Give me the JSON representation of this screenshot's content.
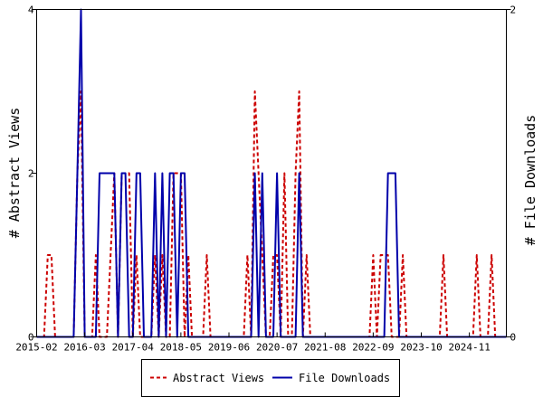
{
  "chart_data": {
    "type": "line",
    "title": "",
    "ylabel_left": "# Abstract Views",
    "ylabel_right": "# File Downloads",
    "ylim_left": [
      0,
      4
    ],
    "ylim_right": [
      0,
      2
    ],
    "yticks_left": [
      "0",
      "2",
      "4"
    ],
    "yticks_right": [
      "0",
      "2"
    ],
    "x_range": [
      "2015-02",
      "2025-09"
    ],
    "x_ticks": [
      "2015-02",
      "2016-03",
      "2017-04",
      "2018-05",
      "2019-06",
      "2020-07",
      "2021-08",
      "2022-09",
      "2023-10",
      "2024-11"
    ],
    "grid": false,
    "legend_position": "bottom-center",
    "series": [
      {
        "name": "Abstract Views",
        "axis": "left",
        "color": "#cc0000",
        "style": "dashed",
        "values": [
          [
            "2015-05",
            1
          ],
          [
            "2015-06",
            1
          ],
          [
            "2016-01",
            2
          ],
          [
            "2016-02",
            3
          ],
          [
            "2016-06",
            1
          ],
          [
            "2016-10",
            1
          ],
          [
            "2016-11",
            2
          ],
          [
            "2017-01",
            2
          ],
          [
            "2017-02",
            2
          ],
          [
            "2017-03",
            2
          ],
          [
            "2017-05",
            1
          ],
          [
            "2017-10",
            1
          ],
          [
            "2017-12",
            1
          ],
          [
            "2018-03",
            2
          ],
          [
            "2018-04",
            2
          ],
          [
            "2018-05",
            2
          ],
          [
            "2018-07",
            1
          ],
          [
            "2018-12",
            1
          ],
          [
            "2019-11",
            1
          ],
          [
            "2020-01",
            3
          ],
          [
            "2020-02",
            2
          ],
          [
            "2020-03",
            1
          ],
          [
            "2020-06",
            1
          ],
          [
            "2020-07",
            1
          ],
          [
            "2020-09",
            2
          ],
          [
            "2020-12",
            2
          ],
          [
            "2021-01",
            3
          ],
          [
            "2021-03",
            1
          ],
          [
            "2022-09",
            1
          ],
          [
            "2022-11",
            1
          ],
          [
            "2022-12",
            1
          ],
          [
            "2023-01",
            1
          ],
          [
            "2023-05",
            1
          ],
          [
            "2024-04",
            1
          ],
          [
            "2025-01",
            1
          ],
          [
            "2025-05",
            1
          ]
        ]
      },
      {
        "name": "File Downloads",
        "axis": "right",
        "color": "#0000aa",
        "style": "solid",
        "values": [
          [
            "2016-01",
            1
          ],
          [
            "2016-02",
            2
          ],
          [
            "2016-07",
            1
          ],
          [
            "2016-08",
            1
          ],
          [
            "2016-09",
            1
          ],
          [
            "2016-10",
            1
          ],
          [
            "2016-11",
            1
          ],
          [
            "2017-01",
            1
          ],
          [
            "2017-02",
            1
          ],
          [
            "2017-05",
            1
          ],
          [
            "2017-06",
            1
          ],
          [
            "2017-10",
            1
          ],
          [
            "2017-12",
            1
          ],
          [
            "2018-02",
            1
          ],
          [
            "2018-03",
            1
          ],
          [
            "2018-05",
            1
          ],
          [
            "2018-06",
            1
          ],
          [
            "2020-01",
            1
          ],
          [
            "2020-03",
            1
          ],
          [
            "2020-07",
            1
          ],
          [
            "2021-01",
            1
          ],
          [
            "2023-01",
            1
          ],
          [
            "2023-02",
            1
          ],
          [
            "2023-03",
            1
          ]
        ]
      }
    ]
  }
}
